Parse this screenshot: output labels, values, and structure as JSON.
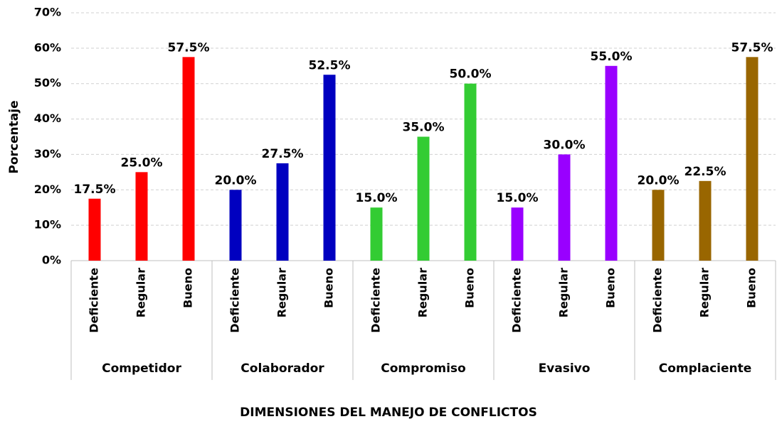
{
  "chart_data": {
    "type": "bar",
    "xlabel": "DIMENSIONES DEL MANEJO DE CONFLICTOS",
    "ylabel": "Porcentaje",
    "groups": [
      {
        "name": "Competidor",
        "color": "#ff0000",
        "categories": [
          "Deficiente",
          "Regular",
          "Bueno"
        ],
        "values": [
          17.5,
          25.0,
          57.5
        ],
        "value_labels": [
          "17.5%",
          "25.0%",
          "57.5%"
        ]
      },
      {
        "name": "Colaborador",
        "color": "#0000c0",
        "categories": [
          "Deficiente",
          "Regular",
          "Bueno"
        ],
        "values": [
          20.0,
          27.5,
          52.5
        ],
        "value_labels": [
          "20.0%",
          "27.5%",
          "52.5%"
        ]
      },
      {
        "name": "Compromiso",
        "color": "#33cc33",
        "categories": [
          "Deficiente",
          "Regular",
          "Bueno"
        ],
        "values": [
          15.0,
          35.0,
          50.0
        ],
        "value_labels": [
          "15.0%",
          "35.0%",
          "50.0%"
        ]
      },
      {
        "name": "Evasivo",
        "color": "#9900ff",
        "categories": [
          "Deficiente",
          "Regular",
          "Bueno"
        ],
        "values": [
          15.0,
          30.0,
          55.0
        ],
        "value_labels": [
          "15.0%",
          "30.0%",
          "55.0%"
        ]
      },
      {
        "name": "Complaciente",
        "color": "#996600",
        "categories": [
          "Deficiente",
          "Regular",
          "Bueno"
        ],
        "values": [
          20.0,
          22.5,
          57.5
        ],
        "value_labels": [
          "20.0%",
          "22.5%",
          "57.5%"
        ]
      }
    ],
    "ylim": [
      0,
      70
    ],
    "yticks": [
      {
        "value": 0,
        "label": "0%"
      },
      {
        "value": 10,
        "label": "10%"
      },
      {
        "value": 20,
        "label": "20%"
      },
      {
        "value": 30,
        "label": "30%"
      },
      {
        "value": 40,
        "label": "40%"
      },
      {
        "value": 50,
        "label": "50%"
      },
      {
        "value": 60,
        "label": "60%"
      },
      {
        "value": 70,
        "label": "70%"
      }
    ],
    "grid": true
  }
}
